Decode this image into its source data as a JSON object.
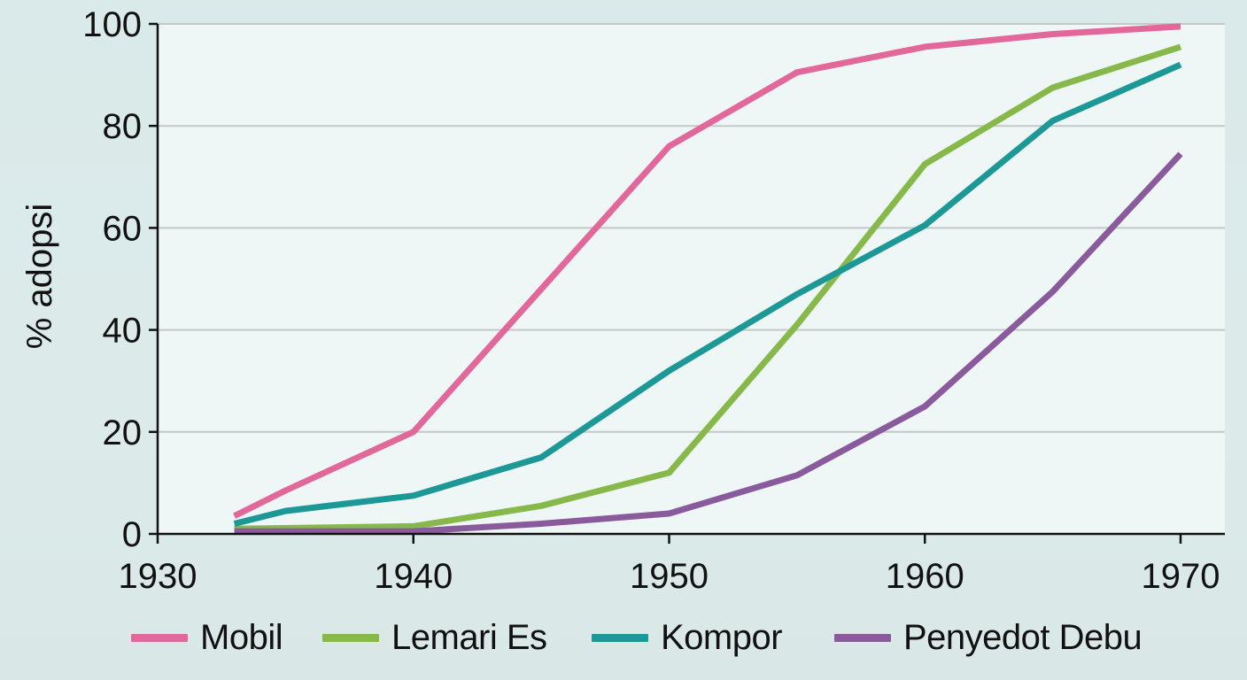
{
  "chart_data": {
    "type": "line",
    "title": "",
    "xlabel": "",
    "ylabel": "% adopsi",
    "xlim": [
      1930,
      1972
    ],
    "ylim": [
      0,
      100
    ],
    "x_ticks": [
      1930,
      1940,
      1950,
      1960,
      1970
    ],
    "y_ticks": [
      0,
      20,
      40,
      60,
      80,
      100
    ],
    "x_tick_labels": [
      "1930",
      "1940",
      "1950",
      "1960",
      "1970"
    ],
    "y_tick_labels": [
      "0",
      "20",
      "40",
      "60",
      "80",
      "100"
    ],
    "grid": {
      "horizontal": true,
      "vertical": false,
      "color": "#c3c9c9"
    },
    "legend_position": "bottom",
    "plot_background": "#eff6f6",
    "page_background": "#dbeaea",
    "series": [
      {
        "name": "Mobil",
        "color": "#e2679a",
        "x": [
          1933,
          1935,
          1940,
          1945,
          1950,
          1955,
          1960,
          1965,
          1970
        ],
        "values": [
          3.5,
          8.5,
          20,
          48,
          76,
          90.5,
          95.5,
          98,
          99.5
        ]
      },
      {
        "name": "Lemari Es",
        "color": "#86b84a",
        "x": [
          1933,
          1940,
          1945,
          1950,
          1955,
          1960,
          1965,
          1970
        ],
        "values": [
          1,
          1.5,
          5.5,
          12,
          41,
          72.5,
          87.5,
          95.5
        ]
      },
      {
        "name": "Kompor",
        "color": "#1c9896",
        "x": [
          1933,
          1935,
          1940,
          1945,
          1950,
          1955,
          1960,
          1965,
          1970
        ],
        "values": [
          2,
          4.5,
          7.5,
          15,
          32,
          47,
          60.5,
          81,
          92
        ]
      },
      {
        "name": "Penyedot Debu",
        "color": "#8a5b9c",
        "x": [
          1933,
          1940,
          1945,
          1950,
          1955,
          1960,
          1965,
          1970
        ],
        "values": [
          0.5,
          0.5,
          2,
          4,
          11.5,
          25,
          47.5,
          74.5
        ]
      }
    ]
  },
  "legend": {
    "items": [
      {
        "label": "Mobil",
        "color": "#e2679a"
      },
      {
        "label": "Lemari Es",
        "color": "#86b84a"
      },
      {
        "label": "Kompor",
        "color": "#1c9896"
      },
      {
        "label": "Penyedot Debu",
        "color": "#8a5b9c"
      }
    ]
  }
}
